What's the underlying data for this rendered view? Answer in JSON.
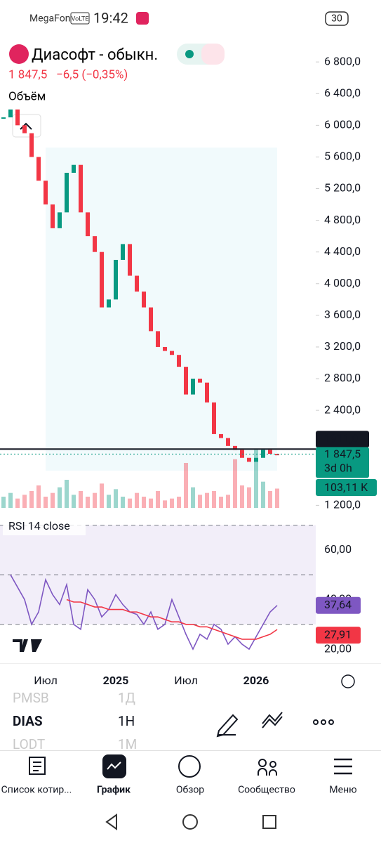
{
  "status_bar": {
    "carrier": "MegaFon",
    "volte": "VoLTE",
    "time": "19:42",
    "battery": "30"
  },
  "header": {
    "title": "Диасофт - обыкн.",
    "price": "1 847,5",
    "change": "−6,5 (−0,35%)",
    "volume_label": "Объём"
  },
  "chart_data": [
    {
      "type": "candlestick",
      "categories": [
        null,
        null,
        null,
        null,
        null,
        null,
        "Июл",
        null,
        null,
        null,
        null,
        null,
        null,
        null,
        null,
        null,
        "2025",
        null,
        null,
        null,
        null,
        null,
        null,
        null,
        null,
        null,
        "Июл",
        null,
        null,
        null,
        null,
        null,
        null,
        null,
        null,
        null,
        "2026",
        null,
        null,
        null
      ],
      "values": [
        6100,
        6200,
        6000,
        5900,
        5600,
        5300,
        5000,
        4700,
        4900,
        5400,
        5500,
        4900,
        4600,
        4400,
        3700,
        3800,
        4300,
        4500,
        4100,
        3900,
        3700,
        3400,
        3200,
        3150,
        3100,
        2950,
        2600,
        2800,
        2750,
        2500,
        2100,
        2050,
        1950,
        1900,
        1800,
        1750,
        1800,
        1900,
        1850,
        1847.5
      ],
      "value_labels": [
        null,
        null,
        null,
        null,
        null,
        null,
        null,
        null,
        null,
        null,
        null,
        null,
        null,
        null,
        null,
        null,
        null,
        null,
        null,
        null,
        null,
        null,
        null,
        null,
        null,
        null,
        null,
        null,
        null,
        null,
        null,
        null,
        null,
        null,
        null,
        null,
        null,
        null,
        null,
        "1 847,5"
      ],
      "countdown": "3d 0h",
      "up_color": "#089981",
      "down_color": "#f23645",
      "ylim": [
        1150,
        7050
      ],
      "yticks": [
        {
          "value": 1200,
          "label": "1 200,0"
        },
        {
          "value": 2400,
          "label": "2 400,0"
        },
        {
          "value": 2800,
          "label": "2 800,0"
        },
        {
          "value": 3200,
          "label": "3 200,0"
        },
        {
          "value": 3600,
          "label": "3 600,0"
        },
        {
          "value": 4000,
          "label": "4 000,0"
        },
        {
          "value": 4400,
          "label": "4 400,0"
        },
        {
          "value": 4800,
          "label": "4 800,0"
        },
        {
          "value": 5200,
          "label": "5 200,0"
        },
        {
          "value": 5600,
          "label": "5 600,0"
        },
        {
          "value": 6000,
          "label": "6 000,0"
        },
        {
          "value": 6400,
          "label": "6 400,0"
        },
        {
          "value": 6800,
          "label": "6 800,0"
        }
      ],
      "level": {
        "value": 1911,
        "label": "1911,0"
      },
      "volume": {
        "values": [
          60,
          80,
          50,
          70,
          90,
          120,
          60,
          80,
          110,
          150,
          70,
          90,
          60,
          80,
          130,
          70,
          100,
          60,
          50,
          80,
          60,
          50,
          90,
          40,
          50,
          60,
          240,
          110,
          70,
          80,
          90,
          60,
          70,
          260,
          120,
          110,
          310,
          140,
          90,
          103.11
        ],
        "value_labels": [
          null,
          null,
          null,
          null,
          null,
          null,
          null,
          null,
          null,
          null,
          null,
          null,
          null,
          null,
          null,
          null,
          null,
          null,
          null,
          null,
          null,
          null,
          null,
          null,
          null,
          null,
          null,
          null,
          null,
          null,
          null,
          null,
          null,
          null,
          null,
          null,
          null,
          null,
          null,
          "103,11 K"
        ],
        "ylim": [
          0,
          600
        ]
      }
    },
    {
      "type": "line",
      "title": "RSI 14 close",
      "series": [
        {
          "color": "#7e57c2",
          "values": [
            null,
            50,
            45,
            40,
            30,
            35,
            48,
            42,
            38,
            46,
            30,
            28,
            44,
            40,
            33,
            36,
            42,
            38,
            35,
            34,
            30,
            35,
            28,
            30,
            40,
            33,
            26,
            20,
            26,
            24,
            30,
            28,
            22,
            25,
            22,
            20,
            25,
            30,
            35,
            37.64
          ],
          "value_labels": [
            null,
            null,
            null,
            null,
            null,
            null,
            null,
            null,
            null,
            null,
            null,
            null,
            null,
            null,
            null,
            null,
            null,
            null,
            null,
            null,
            null,
            null,
            null,
            null,
            null,
            null,
            null,
            null,
            null,
            null,
            null,
            null,
            null,
            null,
            null,
            null,
            null,
            null,
            null,
            "37,64"
          ]
        },
        {
          "color": "#f23645",
          "values": [
            null,
            null,
            null,
            null,
            null,
            null,
            null,
            null,
            null,
            40,
            39,
            39,
            38,
            37,
            37,
            36,
            36,
            36,
            35,
            35,
            34,
            33,
            33,
            32,
            31,
            31,
            30,
            30,
            29,
            29,
            28,
            27,
            26,
            25,
            24,
            24,
            24,
            25,
            26,
            27.91
          ],
          "value_labels": [
            null,
            null,
            null,
            null,
            null,
            null,
            null,
            null,
            null,
            null,
            null,
            null,
            null,
            null,
            null,
            null,
            null,
            null,
            null,
            null,
            null,
            null,
            null,
            null,
            null,
            null,
            null,
            null,
            null,
            null,
            null,
            null,
            null,
            null,
            null,
            null,
            null,
            null,
            null,
            "27,91"
          ]
        }
      ],
      "ylim": [
        13.5,
        73
      ],
      "yticks": [
        {
          "value": 20,
          "label": "20,00"
        },
        {
          "value": 40,
          "label": "40,00"
        },
        {
          "value": 60,
          "label": "60,00"
        }
      ],
      "levels": [
        70,
        50,
        30
      ]
    }
  ],
  "watchlist": [
    {
      "symbol": "PMSB",
      "interval": "1Д"
    },
    {
      "symbol": "DIAS",
      "interval": "1H"
    },
    {
      "symbol": "LODT",
      "interval": "1M"
    }
  ],
  "nav": [
    "Список котир...",
    "График",
    "Обзор",
    "Сообщество",
    "Меню"
  ]
}
